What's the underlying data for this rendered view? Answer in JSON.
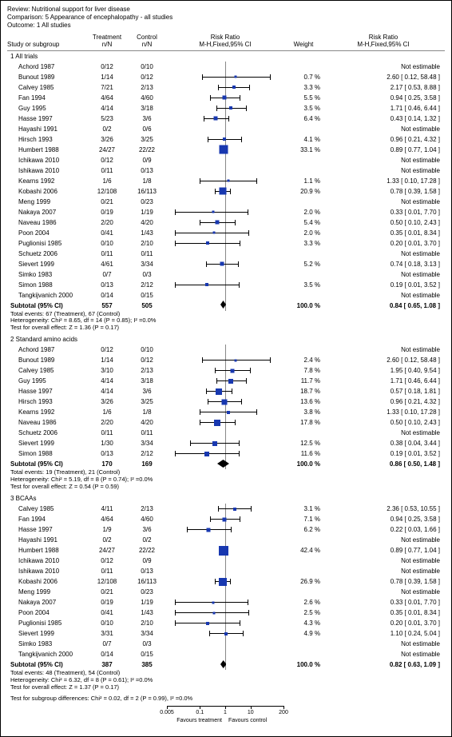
{
  "header": {
    "review": "Review:  Nutritional support for liver disease",
    "comparison": "Comparison:  5 Appearance of encephalopathy - all studies",
    "outcome": "Outcome:  1 All studies"
  },
  "columns": {
    "study": "Study or subgroup",
    "treat": "Treatment",
    "treat_sub": "n/N",
    "control": "Control",
    "control_sub": "n/N",
    "rr": "Risk Ratio",
    "rr_sub": "M-H,Fixed,95% CI",
    "weight": "Weight",
    "rr2": "Risk Ratio",
    "rr2_sub": "M-H,Fixed,95% CI"
  },
  "style": {
    "marker_color": "#1838b0",
    "axis_color": "#888888",
    "grid_color": "#dddddd",
    "text_color": "#000000",
    "log_min": 0.005,
    "log_max": 200,
    "ticks": [
      0.005,
      0.1,
      1,
      10,
      200
    ],
    "axis_labels": {
      "left": "Favours treatment",
      "right": "Favours control"
    }
  },
  "groups": [
    {
      "name": "1 All trials",
      "rows": [
        {
          "study": "Achord 1987",
          "t": "0/12",
          "c": "0/10",
          "ne": true
        },
        {
          "study": "Bunout 1989",
          "t": "1/14",
          "c": "0/12",
          "wt": "0.7 %",
          "rr": "2.60 [ 0.12, 58.48 ]",
          "pt": 2.6,
          "lo": 0.12,
          "hi": 58.48,
          "sz": 3
        },
        {
          "study": "Calvey 1985",
          "t": "7/21",
          "c": "2/13",
          "wt": "3.3 %",
          "rr": "2.17 [ 0.53, 8.88 ]",
          "pt": 2.17,
          "lo": 0.53,
          "hi": 8.88,
          "sz": 4
        },
        {
          "study": "Fan 1994",
          "t": "4/64",
          "c": "4/60",
          "wt": "5.5 %",
          "rr": "0.94 [ 0.25, 3.58 ]",
          "pt": 0.94,
          "lo": 0.25,
          "hi": 3.58,
          "sz": 5
        },
        {
          "study": "Guy 1995",
          "t": "4/14",
          "c": "3/18",
          "wt": "3.5 %",
          "rr": "1.71 [ 0.46, 6.44 ]",
          "pt": 1.71,
          "lo": 0.46,
          "hi": 6.44,
          "sz": 4
        },
        {
          "study": "Hasse 1997",
          "t": "5/23",
          "c": "3/6",
          "wt": "6.4 %",
          "rr": "0.43 [ 0.14, 1.32 ]",
          "pt": 0.43,
          "lo": 0.14,
          "hi": 1.32,
          "sz": 5
        },
        {
          "study": "Hayashi 1991",
          "t": "0/2",
          "c": "0/6",
          "ne": true
        },
        {
          "study": "Hirsch 1993",
          "t": "3/26",
          "c": "3/25",
          "wt": "4.1 %",
          "rr": "0.96 [ 0.21, 4.32 ]",
          "pt": 0.96,
          "lo": 0.21,
          "hi": 4.32,
          "sz": 4
        },
        {
          "study": "Humbert 1988",
          "t": "24/27",
          "c": "22/22",
          "wt": "33.1 %",
          "rr": "0.89 [ 0.77, 1.04 ]",
          "pt": 0.89,
          "lo": 0.77,
          "hi": 1.04,
          "sz": 11
        },
        {
          "study": "Ichikawa 2010",
          "t": "0/12",
          "c": "0/9",
          "ne": true
        },
        {
          "study": "Ishikawa 2010",
          "t": "0/11",
          "c": "0/13",
          "ne": true
        },
        {
          "study": "Kearns 1992",
          "t": "1/6",
          "c": "1/8",
          "wt": "1.1 %",
          "rr": "1.33 [ 0.10, 17.28 ]",
          "pt": 1.33,
          "lo": 0.1,
          "hi": 17.28,
          "sz": 3
        },
        {
          "study": "Kobashi 2006",
          "t": "12/108",
          "c": "16/113",
          "wt": "20.9 %",
          "rr": "0.78 [ 0.39, 1.58 ]",
          "pt": 0.78,
          "lo": 0.39,
          "hi": 1.58,
          "sz": 9
        },
        {
          "study": "Meng 1999",
          "t": "0/21",
          "c": "0/23",
          "ne": true
        },
        {
          "study": "Nakaya 2007",
          "t": "0/19",
          "c": "1/19",
          "wt": "2.0 %",
          "rr": "0.33 [ 0.01, 7.70 ]",
          "pt": 0.33,
          "lo": 0.01,
          "hi": 7.7,
          "sz": 3
        },
        {
          "study": "Naveau 1986",
          "t": "2/20",
          "c": "4/20",
          "wt": "5.4 %",
          "rr": "0.50 [ 0.10, 2.43 ]",
          "pt": 0.5,
          "lo": 0.1,
          "hi": 2.43,
          "sz": 5
        },
        {
          "study": "Poon 2004",
          "t": "0/41",
          "c": "1/43",
          "wt": "2.0 %",
          "rr": "0.35 [ 0.01, 8.34 ]",
          "pt": 0.35,
          "lo": 0.01,
          "hi": 8.34,
          "sz": 3
        },
        {
          "study": "Puglionisi 1985",
          "t": "0/10",
          "c": "2/10",
          "wt": "3.3 %",
          "rr": "0.20 [ 0.01, 3.70 ]",
          "pt": 0.2,
          "lo": 0.01,
          "hi": 3.7,
          "sz": 4
        },
        {
          "study": "Schuetz 2006",
          "t": "0/11",
          "c": "0/11",
          "ne": true
        },
        {
          "study": "Sievert 1999",
          "t": "4/61",
          "c": "3/34",
          "wt": "5.2 %",
          "rr": "0.74 [ 0.18, 3.13 ]",
          "pt": 0.74,
          "lo": 0.18,
          "hi": 3.13,
          "sz": 5
        },
        {
          "study": "Simko 1983",
          "t": "0/7",
          "c": "0/3",
          "ne": true
        },
        {
          "study": "Simon 1988",
          "t": "0/13",
          "c": "2/12",
          "wt": "3.5 %",
          "rr": "0.19 [ 0.01, 3.52 ]",
          "pt": 0.19,
          "lo": 0.01,
          "hi": 3.52,
          "sz": 4
        },
        {
          "study": "Tangkijvanich 2000",
          "t": "0/14",
          "c": "0/15",
          "ne": true
        }
      ],
      "subtotal": {
        "label": "Subtotal (95% CI)",
        "t": "557",
        "c": "505",
        "wt": "100.0 %",
        "rr": "0.84 [ 0.65, 1.08 ]",
        "pt": 0.84,
        "lo": 0.65,
        "hi": 1.08
      },
      "notes": [
        "Total events: 67 (Treatment), 67 (Control)",
        "Heterogeneity: Chi² = 8.65, df = 14 (P = 0.85); I² =0.0%",
        "Test for overall effect: Z = 1.36 (P = 0.17)"
      ]
    },
    {
      "name": "2 Standard amino acids",
      "rows": [
        {
          "study": "Achord 1987",
          "t": "0/12",
          "c": "0/10",
          "ne": true
        },
        {
          "study": "Bunout 1989",
          "t": "1/14",
          "c": "0/12",
          "wt": "2.4 %",
          "rr": "2.60 [ 0.12, 58.48 ]",
          "pt": 2.6,
          "lo": 0.12,
          "hi": 58.48,
          "sz": 3
        },
        {
          "study": "Calvey 1985",
          "t": "3/10",
          "c": "2/13",
          "wt": "7.8 %",
          "rr": "1.95 [ 0.40, 9.54 ]",
          "pt": 1.95,
          "lo": 0.4,
          "hi": 9.54,
          "sz": 5
        },
        {
          "study": "Guy 1995",
          "t": "4/14",
          "c": "3/18",
          "wt": "11.7 %",
          "rr": "1.71 [ 0.46, 6.44 ]",
          "pt": 1.71,
          "lo": 0.46,
          "hi": 6.44,
          "sz": 6
        },
        {
          "study": "Hasse 1997",
          "t": "4/14",
          "c": "3/6",
          "wt": "18.7 %",
          "rr": "0.57 [ 0.18, 1.81 ]",
          "pt": 0.57,
          "lo": 0.18,
          "hi": 1.81,
          "sz": 8
        },
        {
          "study": "Hirsch 1993",
          "t": "3/26",
          "c": "3/25",
          "wt": "13.6 %",
          "rr": "0.96 [ 0.21, 4.32 ]",
          "pt": 0.96,
          "lo": 0.21,
          "hi": 4.32,
          "sz": 7
        },
        {
          "study": "Kearns 1992",
          "t": "1/6",
          "c": "1/8",
          "wt": "3.8 %",
          "rr": "1.33 [ 0.10, 17.28 ]",
          "pt": 1.33,
          "lo": 0.1,
          "hi": 17.28,
          "sz": 4
        },
        {
          "study": "Naveau 1986",
          "t": "2/20",
          "c": "4/20",
          "wt": "17.8 %",
          "rr": "0.50 [ 0.10, 2.43 ]",
          "pt": 0.5,
          "lo": 0.1,
          "hi": 2.43,
          "sz": 8
        },
        {
          "study": "Schuetz 2006",
          "t": "0/11",
          "c": "0/11",
          "ne": true
        },
        {
          "study": "Sievert 1999",
          "t": "1/30",
          "c": "3/34",
          "wt": "12.5 %",
          "rr": "0.38 [ 0.04, 3.44 ]",
          "pt": 0.38,
          "lo": 0.04,
          "hi": 3.44,
          "sz": 6
        },
        {
          "study": "Simon 1988",
          "t": "0/13",
          "c": "2/12",
          "wt": "11.6 %",
          "rr": "0.19 [ 0.01, 3.52 ]",
          "pt": 0.19,
          "lo": 0.01,
          "hi": 3.52,
          "sz": 6
        }
      ],
      "subtotal": {
        "label": "Subtotal (95% CI)",
        "t": "170",
        "c": "169",
        "wt": "100.0 %",
        "rr": "0.86 [ 0.50, 1.48 ]",
        "pt": 0.86,
        "lo": 0.5,
        "hi": 1.48
      },
      "notes": [
        "Total events: 19 (Treatment), 21 (Control)",
        "Heterogeneity: Chi² = 5.19, df = 8 (P = 0.74); I² =0.0%",
        "Test for overall effect: Z = 0.54 (P = 0.59)"
      ]
    },
    {
      "name": "3 BCAAs",
      "rows": [
        {
          "study": "Calvey 1985",
          "t": "4/11",
          "c": "2/13",
          "wt": "3.1 %",
          "rr": "2.36 [ 0.53, 10.55 ]",
          "pt": 2.36,
          "lo": 0.53,
          "hi": 10.55,
          "sz": 4
        },
        {
          "study": "Fan 1994",
          "t": "4/64",
          "c": "4/60",
          "wt": "7.1 %",
          "rr": "0.94 [ 0.25, 3.58 ]",
          "pt": 0.94,
          "lo": 0.25,
          "hi": 3.58,
          "sz": 5
        },
        {
          "study": "Hasse 1997",
          "t": "1/9",
          "c": "3/6",
          "wt": "6.2 %",
          "rr": "0.22 [ 0.03, 1.66 ]",
          "pt": 0.22,
          "lo": 0.03,
          "hi": 1.66,
          "sz": 5
        },
        {
          "study": "Hayashi 1991",
          "t": "0/2",
          "c": "0/2",
          "ne": true
        },
        {
          "study": "Humbert 1988",
          "t": "24/27",
          "c": "22/22",
          "wt": "42.4 %",
          "rr": "0.89 [ 0.77, 1.04 ]",
          "pt": 0.89,
          "lo": 0.77,
          "hi": 1.04,
          "sz": 12
        },
        {
          "study": "Ichikawa 2010",
          "t": "0/12",
          "c": "0/9",
          "ne": true
        },
        {
          "study": "Ishikawa 2010",
          "t": "0/11",
          "c": "0/13",
          "ne": true
        },
        {
          "study": "Kobashi 2006",
          "t": "12/108",
          "c": "16/113",
          "wt": "26.9 %",
          "rr": "0.78 [ 0.39, 1.58 ]",
          "pt": 0.78,
          "lo": 0.39,
          "hi": 1.58,
          "sz": 10
        },
        {
          "study": "Meng 1999",
          "t": "0/21",
          "c": "0/23",
          "ne": true
        },
        {
          "study": "Nakaya 2007",
          "t": "0/19",
          "c": "1/19",
          "wt": "2.6 %",
          "rr": "0.33 [ 0.01, 7.70 ]",
          "pt": 0.33,
          "lo": 0.01,
          "hi": 7.7,
          "sz": 3
        },
        {
          "study": "Poon 2004",
          "t": "0/41",
          "c": "1/43",
          "wt": "2.5 %",
          "rr": "0.35 [ 0.01, 8.34 ]",
          "pt": 0.35,
          "lo": 0.01,
          "hi": 8.34,
          "sz": 3
        },
        {
          "study": "Puglionisi 1985",
          "t": "0/10",
          "c": "2/10",
          "wt": "4.3 %",
          "rr": "0.20 [ 0.01, 3.70 ]",
          "pt": 0.2,
          "lo": 0.01,
          "hi": 3.7,
          "sz": 4
        },
        {
          "study": "Sievert 1999",
          "t": "3/31",
          "c": "3/34",
          "wt": "4.9 %",
          "rr": "1.10 [ 0.24, 5.04 ]",
          "pt": 1.1,
          "lo": 0.24,
          "hi": 5.04,
          "sz": 4
        },
        {
          "study": "Simko 1983",
          "t": "0/7",
          "c": "0/3",
          "ne": true
        },
        {
          "study": "Tangkijvanich 2000",
          "t": "0/14",
          "c": "0/15",
          "ne": true
        }
      ],
      "subtotal": {
        "label": "Subtotal (95% CI)",
        "t": "387",
        "c": "385",
        "wt": "100.0 %",
        "rr": "0.82 [ 0.63, 1.09 ]",
        "pt": 0.82,
        "lo": 0.63,
        "hi": 1.09
      },
      "notes": [
        "Total events: 48 (Treatment), 54 (Control)",
        "Heterogeneity: Chi² = 6.32, df = 8 (P = 0.61); I² =0.0%",
        "Test for overall effect: Z = 1.37 (P = 0.17)"
      ]
    }
  ],
  "footer_note": "Test for subgroup differences: Chi² = 0.02, df = 2 (P = 0.99), I² =0.0%"
}
